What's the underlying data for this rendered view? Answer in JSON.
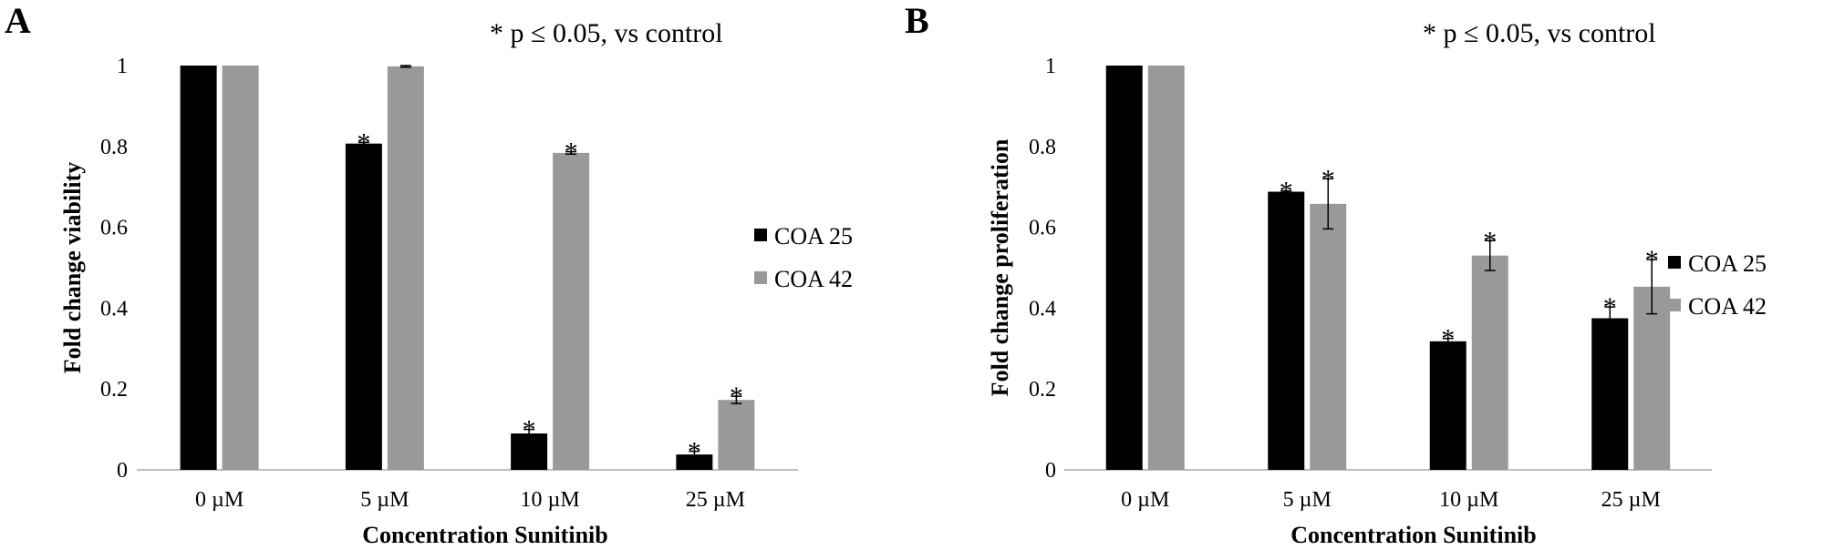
{
  "note": "* p ≤ 0.05, vs control",
  "chart_data": [
    {
      "panel": "A",
      "type": "bar",
      "note": "* p ≤ 0.05, vs control",
      "xlabel": "Concentration Sunitinib",
      "ylabel": "Fold change viability",
      "categories": [
        "0 µM",
        "5 µM",
        "10 µM",
        "25 µM"
      ],
      "ylim": [
        0,
        1
      ],
      "yticks": [
        "0",
        "0.2",
        "0.4",
        "0.6",
        "0.8",
        "1"
      ],
      "legend_position": "right",
      "series": [
        {
          "name": "COA 25",
          "color": "#000000",
          "values": [
            1.0,
            0.807,
            0.09,
            0.038
          ],
          "errors": [
            0,
            0.003,
            0.01,
            0.008
          ],
          "significant": [
            false,
            true,
            true,
            true
          ]
        },
        {
          "name": "COA 42",
          "color": "#999999",
          "values": [
            1.0,
            0.998,
            0.784,
            0.173
          ],
          "errors": [
            0,
            0.002,
            0.003,
            0.009
          ],
          "significant": [
            false,
            false,
            true,
            true
          ]
        }
      ]
    },
    {
      "panel": "B",
      "type": "bar",
      "note": "* p ≤ 0.05, vs control",
      "xlabel": "Concentration Sunitinib",
      "ylabel": "Fold change proliferation",
      "categories": [
        "0 µM",
        "5 µM",
        "10 µM",
        "25 µM"
      ],
      "ylim": [
        0,
        1
      ],
      "yticks": [
        "0",
        "0.2",
        "0.4",
        "0.6",
        "0.8",
        "1"
      ],
      "legend_position": "right",
      "series": [
        {
          "name": "COA 25",
          "color": "#000000",
          "values": [
            1.0,
            0.688,
            0.318,
            0.375
          ],
          "errors": [
            0,
            0.002,
            0.007,
            0.028
          ],
          "significant": [
            false,
            true,
            true,
            true
          ]
        },
        {
          "name": "COA 42",
          "color": "#999999",
          "values": [
            1.0,
            0.658,
            0.53,
            0.453
          ],
          "errors": [
            0,
            0.062,
            0.037,
            0.067
          ],
          "significant": [
            false,
            true,
            true,
            true
          ]
        }
      ]
    }
  ]
}
